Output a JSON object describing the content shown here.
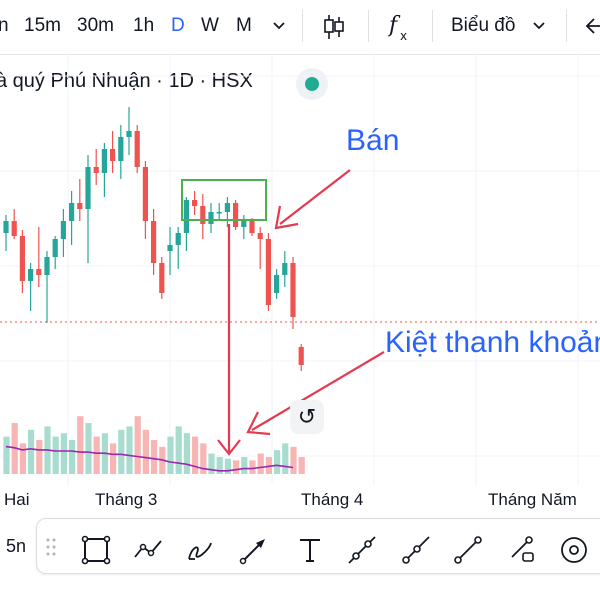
{
  "toolbar": {
    "intervals": [
      {
        "label": "n",
        "active": false
      },
      {
        "label": "15m",
        "active": false
      },
      {
        "label": "30m",
        "active": false
      },
      {
        "label": "1h",
        "active": false
      },
      {
        "label": "D",
        "active": true
      },
      {
        "label": "W",
        "active": false
      },
      {
        "label": "M",
        "active": false
      }
    ],
    "more_icon": "chevron-down-icon",
    "candle_icon": "candlestick-icon",
    "indicator_icon": "function-fx-icon",
    "chart_type_label": "Biểu đồ",
    "back_icon": "arrow-left-icon"
  },
  "symbol": {
    "title": "à quý Phú Nhuận · 1D · HSX",
    "status": "market-open"
  },
  "annotations": {
    "sell": "Bán",
    "illiquid": "Kiệt thanh khoản"
  },
  "x_axis": {
    "labels": [
      "Hai",
      "Tháng 3",
      "Tháng 4",
      "Tháng Năm"
    ]
  },
  "colors": {
    "up": "#26a69a",
    "down": "#ef5350",
    "up_volume": "#a7dccf",
    "down_volume": "#f7b5b3",
    "accent": "#2962ff",
    "arrow": "#e53950",
    "ma_line": "#9c27b0",
    "box": "#4caf50"
  },
  "bottom_bar": {
    "left_label": "5n",
    "tools": [
      "rectangle-tool-icon",
      "path-tool-icon",
      "brush-tool-icon",
      "arrow-tool-icon",
      "text-tool-icon",
      "extended-line-tool-icon",
      "ray-tool-icon",
      "trend-line-tool-icon",
      "info-line-tool-icon",
      "target-tool-icon"
    ]
  },
  "chart_data": {
    "type": "candlestick",
    "candles": [
      {
        "o": 32,
        "h": 38,
        "l": 26,
        "c": 36
      },
      {
        "o": 36,
        "h": 40,
        "l": 30,
        "c": 31
      },
      {
        "o": 31,
        "h": 33,
        "l": 12,
        "c": 16
      },
      {
        "o": 16,
        "h": 22,
        "l": 6,
        "c": 20
      },
      {
        "o": 20,
        "h": 34,
        "l": 14,
        "c": 18
      },
      {
        "o": 18,
        "h": 26,
        "l": 2,
        "c": 24
      },
      {
        "o": 24,
        "h": 31,
        "l": 20,
        "c": 30
      },
      {
        "o": 30,
        "h": 40,
        "l": 24,
        "c": 36
      },
      {
        "o": 36,
        "h": 46,
        "l": 28,
        "c": 42
      },
      {
        "o": 42,
        "h": 50,
        "l": 36,
        "c": 40
      },
      {
        "o": 40,
        "h": 58,
        "l": 22,
        "c": 54
      },
      {
        "o": 54,
        "h": 60,
        "l": 48,
        "c": 52
      },
      {
        "o": 52,
        "h": 62,
        "l": 44,
        "c": 60
      },
      {
        "o": 60,
        "h": 66,
        "l": 52,
        "c": 56
      },
      {
        "o": 56,
        "h": 68,
        "l": 50,
        "c": 64
      },
      {
        "o": 64,
        "h": 74,
        "l": 58,
        "c": 66
      },
      {
        "o": 66,
        "h": 68,
        "l": 52,
        "c": 54
      },
      {
        "o": 54,
        "h": 56,
        "l": 30,
        "c": 36
      },
      {
        "o": 36,
        "h": 40,
        "l": 18,
        "c": 22
      },
      {
        "o": 22,
        "h": 24,
        "l": 10,
        "c": 12
      },
      {
        "o": 26,
        "h": 34,
        "l": 18,
        "c": 28
      },
      {
        "o": 28,
        "h": 34,
        "l": 20,
        "c": 32
      },
      {
        "o": 32,
        "h": 44,
        "l": 26,
        "c": 43
      },
      {
        "o": 43,
        "h": 46,
        "l": 38,
        "c": 41
      },
      {
        "o": 41,
        "h": 45,
        "l": 30,
        "c": 35
      },
      {
        "o": 35,
        "h": 42,
        "l": 32,
        "c": 39
      },
      {
        "o": 39,
        "h": 42,
        "l": 36,
        "c": 39
      },
      {
        "o": 39,
        "h": 44,
        "l": 34,
        "c": 42
      },
      {
        "o": 42,
        "h": 43,
        "l": 33,
        "c": 34
      },
      {
        "o": 34,
        "h": 38,
        "l": 30,
        "c": 36
      },
      {
        "o": 36,
        "h": 37,
        "l": 31,
        "c": 32
      },
      {
        "o": 32,
        "h": 34,
        "l": 20,
        "c": 30
      },
      {
        "o": 30,
        "h": 32,
        "l": 6,
        "c": 8
      },
      {
        "o": 12,
        "h": 20,
        "l": 10,
        "c": 18
      },
      {
        "o": 18,
        "h": 26,
        "l": 14,
        "c": 22
      },
      {
        "o": 22,
        "h": 24,
        "l": 0,
        "c": 4
      },
      {
        "o": -6,
        "h": -5,
        "l": -14,
        "c": -12
      }
    ],
    "volume": [
      22,
      30,
      18,
      26,
      20,
      28,
      22,
      24,
      20,
      34,
      30,
      22,
      24,
      18,
      26,
      28,
      34,
      26,
      20,
      16,
      22,
      28,
      24,
      22,
      18,
      12,
      10,
      9,
      8,
      10,
      8,
      12,
      10,
      14,
      18,
      16,
      10
    ],
    "ma": [
      34,
      33,
      31,
      32,
      31,
      31,
      30,
      30,
      30,
      29,
      29,
      28,
      28,
      27,
      27,
      26,
      25,
      24,
      23,
      22,
      20,
      19,
      18,
      16,
      14,
      13,
      12,
      12,
      13,
      14,
      14,
      15,
      16,
      17,
      16,
      15
    ]
  }
}
